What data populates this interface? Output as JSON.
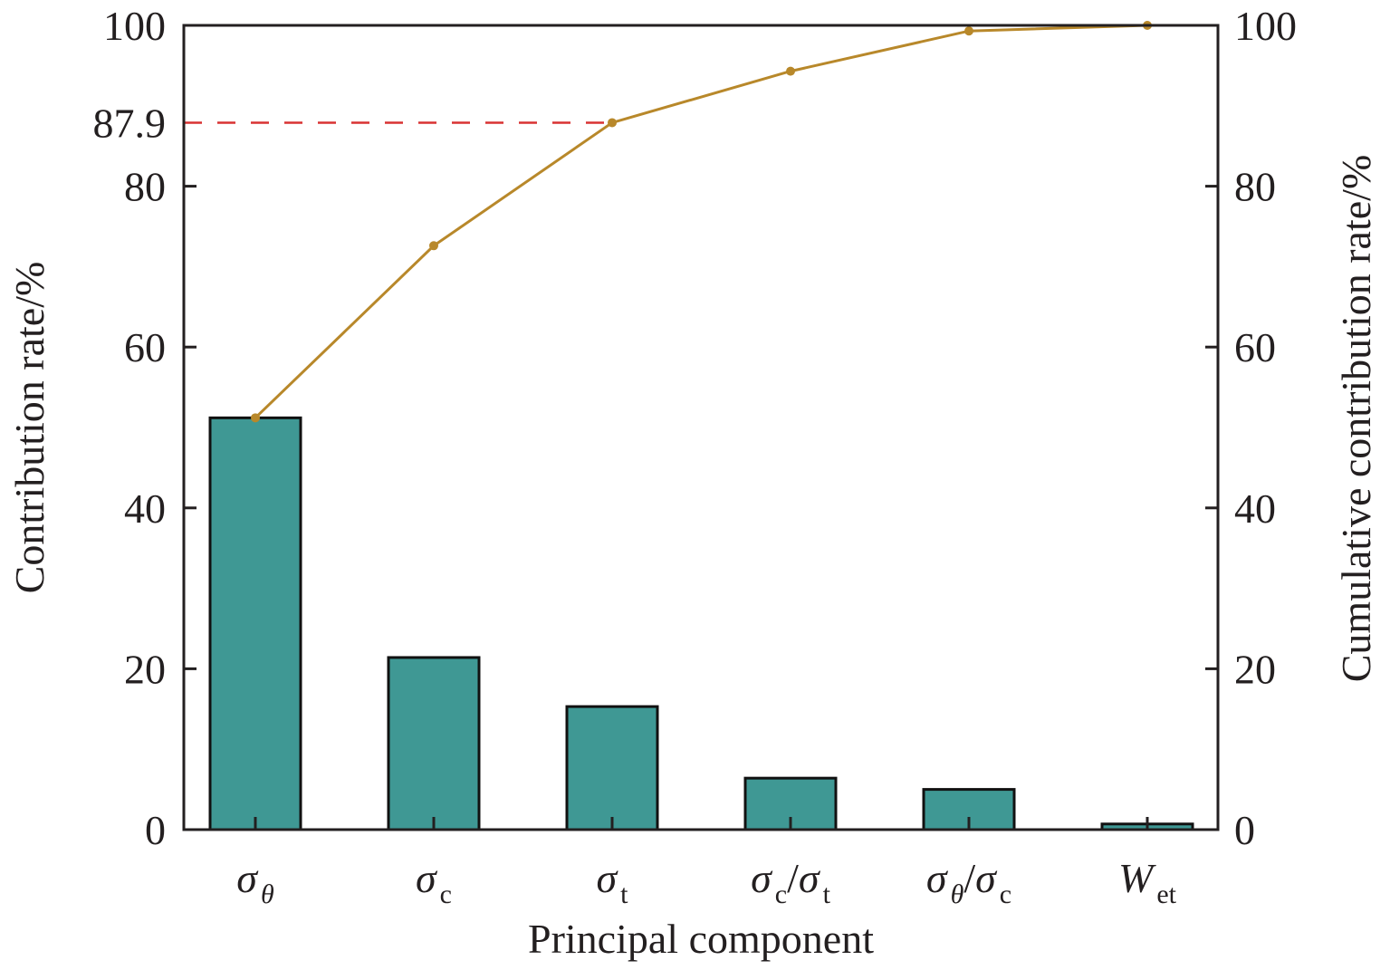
{
  "chart_data": {
    "type": "bar+line",
    "xlabel": "Principal component",
    "ylabel": "Contribution rate/%",
    "y2label": "Cumulative contribution rate/%",
    "ylim": [
      0,
      100
    ],
    "y2lim": [
      0,
      100
    ],
    "yticks": [
      "0",
      "20",
      "40",
      "60",
      "80",
      "87.9",
      "100"
    ],
    "y2ticks": [
      "0",
      "20",
      "40",
      "60",
      "80",
      "100"
    ],
    "grid": false,
    "categories": [
      [
        {
          "t": "σ",
          "it": true
        },
        {
          "t": "θ",
          "sub": true,
          "it": true
        }
      ],
      [
        {
          "t": "σ",
          "it": true
        },
        {
          "t": "c",
          "sub": true
        }
      ],
      [
        {
          "t": "σ",
          "it": true
        },
        {
          "t": "t",
          "sub": true
        }
      ],
      [
        {
          "t": "σ",
          "it": true
        },
        {
          "t": "c",
          "sub": true
        },
        {
          "t": "/"
        },
        {
          "t": "σ",
          "it": true
        },
        {
          "t": "t",
          "sub": true
        }
      ],
      [
        {
          "t": "σ",
          "it": true
        },
        {
          "t": "θ",
          "sub": true,
          "it": true
        },
        {
          "t": "/"
        },
        {
          "t": "σ",
          "it": true
        },
        {
          "t": "c",
          "sub": true
        }
      ],
      [
        {
          "t": "W",
          "it": true
        },
        {
          "t": "et",
          "sub": true
        }
      ]
    ],
    "series": [
      {
        "type": "bar",
        "axis": "left",
        "values": [
          51.2,
          21.4,
          15.3,
          6.4,
          5.0,
          0.7
        ],
        "color": "#3f9894"
      },
      {
        "type": "line",
        "axis": "right",
        "values": [
          51.2,
          72.6,
          87.9,
          94.3,
          99.3,
          100
        ],
        "color": "#b8882a"
      }
    ],
    "reference_line": {
      "y": 87.9,
      "label": "87.9",
      "color": "#d93232",
      "style": "dashed"
    }
  }
}
